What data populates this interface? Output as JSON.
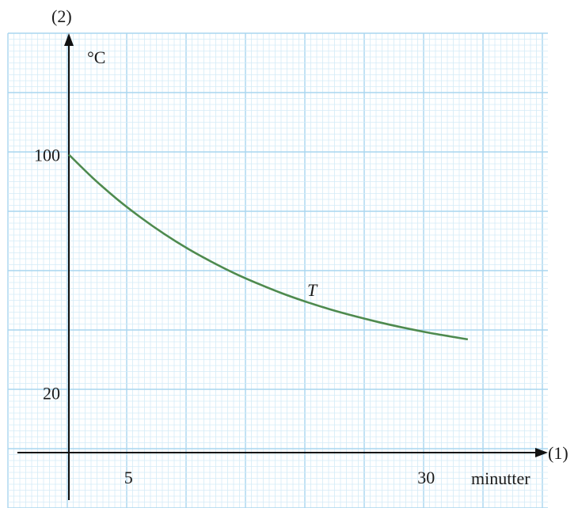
{
  "chart_data": {
    "type": "line",
    "x_axis_number": "(1)",
    "y_axis_number": "(2)",
    "x_unit": "minutter",
    "y_unit": "°C",
    "x_tick_labels": [
      {
        "x": 5,
        "label": "5"
      },
      {
        "x": 30,
        "label": "30"
      }
    ],
    "y_tick_labels": [
      {
        "y": 20,
        "label": "20"
      },
      {
        "y": 100,
        "label": "100"
      }
    ],
    "xlim": [
      -4.2,
      33.5
    ],
    "ylim": [
      -8,
      143
    ],
    "grid": true,
    "series": [
      {
        "name": "T",
        "color": "#4e8a4e",
        "x": [
          0,
          2,
          4,
          6,
          8,
          10,
          12,
          14,
          16,
          18,
          20,
          22,
          24,
          26,
          28,
          30,
          32,
          33.5
        ],
        "y": [
          100.0,
          92.2,
          85.2,
          79.0,
          73.4,
          68.4,
          64.0,
          60.0,
          56.5,
          53.3,
          50.5,
          48.0,
          45.8,
          43.8,
          42.0,
          40.4,
          39.0,
          38.0
        ]
      }
    ]
  },
  "colors": {
    "grid_minor": "#d4ebf7",
    "grid_major": "#a9d6ef",
    "axis": "#111111",
    "curve": "#4e8a4e"
  }
}
